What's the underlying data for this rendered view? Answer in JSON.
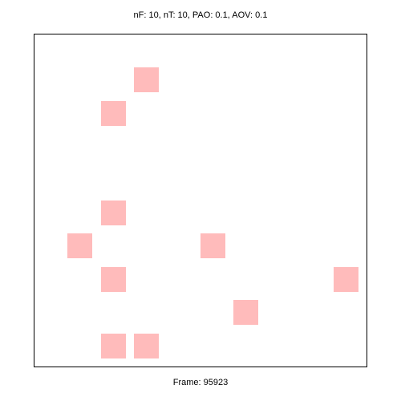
{
  "header": {
    "params_text": "nF: 10, nT: 10, PAO: 0.1, AOV: 0.1"
  },
  "footer": {
    "frame_text": "Frame: 95923"
  },
  "grid": {
    "columns": 10,
    "rows": 10,
    "cell_color": "#ffbbbb",
    "cells": [
      {
        "col": 3,
        "row": 1
      },
      {
        "col": 2,
        "row": 2
      },
      {
        "col": 2,
        "row": 5
      },
      {
        "col": 1,
        "row": 6
      },
      {
        "col": 5,
        "row": 6
      },
      {
        "col": 2,
        "row": 7
      },
      {
        "col": 9,
        "row": 7
      },
      {
        "col": 6,
        "row": 8
      },
      {
        "col": 2,
        "row": 9
      },
      {
        "col": 3,
        "row": 9
      }
    ]
  }
}
